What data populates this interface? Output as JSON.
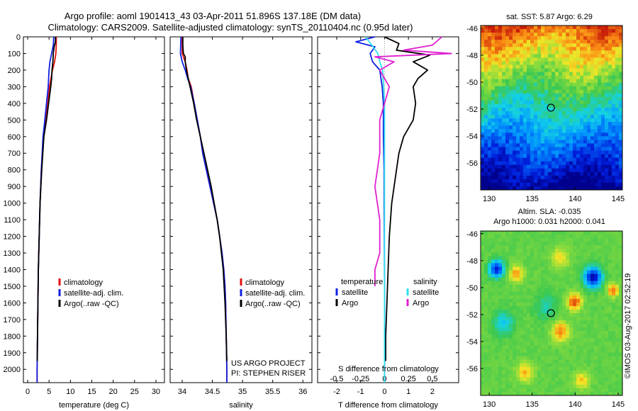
{
  "header": {
    "title_line1": "Argo profile: aoml 1901413_43 03-Apr-2011 51.896S 137.18E (DM data)",
    "title_line2": "Climatology: CARS2009. Satellite-adjusted climatology: synTS_20110404.nc (0.95d later)"
  },
  "colors": {
    "climatology": "#e01010",
    "satellite": "#1020e0",
    "argo": "#000000",
    "salinity_satellite": "#30e0f0",
    "salinity_argo": "#e020d0"
  },
  "chart_data": [
    {
      "type": "line",
      "name": "temperature-panel",
      "xlabel": "temperature (deg C)",
      "xlim": [
        -1,
        32
      ],
      "xticks": [
        0,
        5,
        10,
        15,
        20,
        25,
        30
      ],
      "ylim": [
        2080,
        0
      ],
      "yticks": [
        0,
        100,
        200,
        300,
        400,
        500,
        600,
        700,
        800,
        900,
        1000,
        1100,
        1200,
        1300,
        1400,
        1500,
        1600,
        1700,
        1800,
        1900,
        2000
      ],
      "legend": [
        "climatology",
        "satellite-adj. clim.",
        "Argo(..raw -QC)"
      ],
      "series": [
        {
          "name": "climatology",
          "y": [
            0,
            50,
            100,
            150,
            200,
            300,
            400,
            500,
            600,
            800,
            1000,
            1200,
            1400,
            1600,
            1800,
            2000,
            2080
          ],
          "x": [
            6.7,
            6.7,
            6.6,
            6.3,
            5.8,
            5.1,
            4.7,
            4.2,
            3.7,
            3.2,
            2.9,
            2.7,
            2.5,
            2.4,
            2.3,
            2.2,
            2.2
          ]
        },
        {
          "name": "satellite-adj. clim.",
          "y": [
            0,
            50,
            100,
            150,
            200,
            300,
            400,
            500,
            600,
            800,
            1000,
            1200,
            1400,
            1600,
            1800,
            2000,
            2080
          ],
          "x": [
            6.1,
            6.0,
            5.6,
            5.2,
            5.0,
            4.8,
            4.4,
            4.0,
            3.6,
            3.2,
            2.9,
            2.7,
            2.5,
            2.4,
            2.3,
            2.2,
            2.2
          ]
        },
        {
          "name": "Argo(..raw -QC)",
          "y": [
            0,
            30,
            60,
            100,
            150,
            200,
            250,
            300,
            400,
            500,
            600,
            800,
            1000,
            1200,
            1400,
            1600,
            1800,
            1950
          ],
          "x": [
            6.5,
            6.5,
            6.2,
            6.0,
            5.9,
            5.7,
            5.6,
            5.4,
            4.9,
            4.4,
            3.8,
            3.3,
            2.9,
            2.7,
            2.5,
            2.4,
            2.3,
            2.25
          ]
        }
      ]
    },
    {
      "type": "line",
      "name": "salinity-panel",
      "xlabel": "salinity",
      "xlim": [
        33.8,
        36.15
      ],
      "xticks": [
        34,
        34.5,
        35,
        35.5,
        36
      ],
      "ylim": [
        2080,
        0
      ],
      "legend": [
        "climatology",
        "satellite-adj. clim.",
        "Argo(..raw -QC)"
      ],
      "annotations": [
        "US ARGO PROJECT",
        "PI: STEPHEN RISER"
      ],
      "series": [
        {
          "name": "climatology",
          "y": [
            0,
            100,
            150,
            200,
            250,
            300,
            400,
            500,
            600,
            700,
            800,
            900,
            1000,
            1100,
            1200,
            1300,
            1400,
            1500,
            1600,
            1800,
            2000,
            2080
          ],
          "x": [
            34.0,
            34.0,
            34.05,
            34.08,
            34.1,
            34.15,
            34.2,
            34.25,
            34.3,
            34.34,
            34.4,
            34.46,
            34.52,
            34.58,
            34.62,
            34.66,
            34.69,
            34.71,
            34.72,
            34.73,
            34.74,
            34.74
          ]
        },
        {
          "name": "satellite-adj. clim.",
          "y": [
            0,
            100,
            150,
            200,
            250,
            300,
            400,
            500,
            600,
            700,
            800,
            900,
            1000,
            1100,
            1200,
            1300,
            1400,
            1500,
            1600,
            1800,
            2000,
            2080
          ],
          "x": [
            33.98,
            33.97,
            34.0,
            34.05,
            34.09,
            34.14,
            34.2,
            34.25,
            34.3,
            34.34,
            34.4,
            34.46,
            34.52,
            34.58,
            34.62,
            34.66,
            34.69,
            34.71,
            34.72,
            34.73,
            34.74,
            34.74
          ]
        },
        {
          "name": "Argo(..raw -QC)",
          "y": [
            0,
            50,
            100,
            120,
            150,
            200,
            300,
            400,
            500,
            600,
            700,
            800,
            900,
            1000,
            1100,
            1200,
            1400,
            1600,
            1800,
            1950
          ],
          "x": [
            34.01,
            34.01,
            34.02,
            34.05,
            34.05,
            34.07,
            34.13,
            34.19,
            34.24,
            34.3,
            34.36,
            34.42,
            34.48,
            34.53,
            34.58,
            34.62,
            34.68,
            34.71,
            34.73,
            34.74
          ]
        }
      ]
    },
    {
      "type": "line",
      "name": "difference-panel",
      "xlabel": "T difference from climatology",
      "xlabel_top": "S difference from climatology",
      "xlim": [
        -2.8,
        3.1
      ],
      "xticks": [
        -2,
        -1,
        0,
        1,
        2
      ],
      "top_ticks": [
        "-0.5",
        "-0.25",
        "0",
        "0.25",
        "0.5"
      ],
      "ylim": [
        2080,
        0
      ],
      "legend_title_t": "temperature",
      "legend_title_s": "salinity",
      "legend": [
        "satellite",
        "Argo",
        "satellite",
        "Argo"
      ],
      "series": [
        {
          "name": "satellite",
          "variable": "temperature",
          "y": [
            0,
            30,
            60,
            100,
            150,
            200,
            300,
            400,
            600,
            800,
            1000,
            1200,
            1500,
            1800,
            2080
          ],
          "x": [
            -0.4,
            -1.2,
            -0.4,
            -0.6,
            -0.5,
            -0.2,
            -0.1,
            -0.05,
            -0.05,
            -0.02,
            -0.02,
            -0.01,
            0,
            0,
            0
          ]
        },
        {
          "name": "Argo",
          "variable": "temperature",
          "y": [
            0,
            40,
            80,
            110,
            150,
            200,
            250,
            300,
            400,
            500,
            600,
            700,
            800,
            1000,
            1200,
            1400,
            1600,
            1800,
            1950
          ],
          "x": [
            0.0,
            0.6,
            0.5,
            1.9,
            1.2,
            1.8,
            1.4,
            1.2,
            1.3,
            1.2,
            0.8,
            0.6,
            0.5,
            0.3,
            0.2,
            0.15,
            0.1,
            0.05,
            0.05
          ]
        },
        {
          "name": "satellite",
          "variable": "salinity",
          "y": [
            0,
            60,
            100,
            150,
            200,
            300,
            400,
            500,
            700,
            900,
            1200,
            1500,
            1800,
            2080
          ],
          "x": [
            -0.2,
            -0.12,
            -0.07,
            -0.05,
            -0.02,
            -0.01,
            0,
            0,
            0,
            0,
            0,
            0,
            0,
            0
          ]
        },
        {
          "name": "Argo",
          "variable": "salinity",
          "y": [
            0,
            50,
            80,
            100,
            120,
            150,
            200,
            300,
            500,
            700,
            900,
            1100,
            1300,
            1400,
            1500
          ],
          "x": [
            0.6,
            0.5,
            0.2,
            0.7,
            -0.1,
            0.1,
            -0.05,
            0.05,
            -0.05,
            -0.05,
            -0.1,
            -0.05,
            -0.05,
            -0.1,
            -0.1
          ]
        }
      ]
    },
    {
      "type": "heatmap",
      "name": "sst-map",
      "title": "sat. SST: 5.87  Argo: 6.29",
      "xlim": [
        129,
        145.5
      ],
      "ylim": [
        -58,
        -45.8
      ],
      "xticks": [
        130,
        135,
        140,
        145
      ],
      "yticks": [
        -46,
        -48,
        -50,
        -52,
        -54,
        -56
      ],
      "marker": {
        "lon": 137.18,
        "lat": -51.896
      }
    },
    {
      "type": "heatmap",
      "name": "sla-map",
      "title_line1": "Altim. SLA: -0.035",
      "title_line2": "Argo h1000: 0.031  h2000: 0.041",
      "xlim": [
        129,
        145.5
      ],
      "ylim": [
        -58,
        -45.8
      ],
      "xticks": [
        130,
        135,
        140,
        145
      ],
      "yticks": [
        -46,
        -48,
        -50,
        -52,
        -54,
        -56
      ],
      "marker": {
        "lon": 137.18,
        "lat": -51.896
      }
    }
  ],
  "footer_stamp": "©IMOS 03-Aug-2017 02:52:19"
}
